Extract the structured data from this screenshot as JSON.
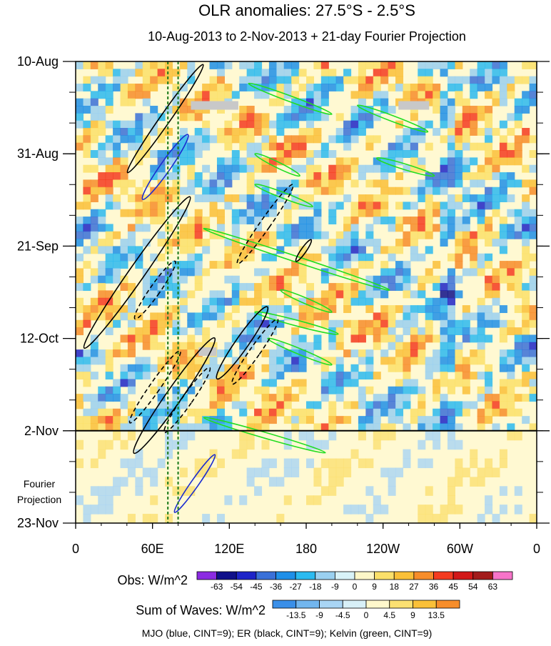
{
  "chart_data": {
    "type": "heatmap",
    "title": "OLR anomalies: 27.5°S - 2.5°S",
    "subtitle": "10-Aug-2013 to 2-Nov-2013 + 21-day Fourier Projection",
    "x_ticks": [
      "0",
      "60E",
      "120E",
      "180",
      "120W",
      "60W",
      "0"
    ],
    "x_tick_lon": [
      0,
      60,
      120,
      180,
      240,
      300,
      360
    ],
    "xlim": [
      0,
      360
    ],
    "y_ticks": [
      "10-Aug",
      "31-Aug",
      "21-Sep",
      "12-Oct",
      "2-Nov",
      "23-Nov"
    ],
    "y_tick_day": [
      0,
      21,
      42,
      63,
      84,
      105
    ],
    "ylim_days": [
      0,
      105
    ],
    "observation_end_day": 84,
    "projection_label": "Fourier\nProjection",
    "dashed_longitudes": [
      72,
      80
    ],
    "missing_bars": [
      {
        "lon": [
          90,
          127
        ],
        "day": 10
      },
      {
        "lon": [
          252,
          276
        ],
        "day": 10
      },
      {
        "lon": [
          96,
          110
        ],
        "day": 66
      }
    ],
    "kelvin_waves": [
      {
        "lon": [
          135,
          200
        ],
        "day": [
          5,
          12
        ]
      },
      {
        "lon": [
          220,
          275
        ],
        "day": [
          10,
          16
        ]
      },
      {
        "lon": [
          140,
          175
        ],
        "day": [
          21,
          26
        ]
      },
      {
        "lon": [
          235,
          280
        ],
        "day": [
          22,
          26
        ]
      },
      {
        "lon": [
          140,
          185
        ],
        "day": [
          28,
          33
        ]
      },
      {
        "lon": [
          100,
          245
        ],
        "day": [
          38,
          52
        ]
      },
      {
        "lon": [
          160,
          200
        ],
        "day": [
          52,
          57
        ]
      },
      {
        "lon": [
          140,
          205
        ],
        "day": [
          57,
          62
        ]
      },
      {
        "lon": [
          150,
          200
        ],
        "day": [
          63,
          69
        ]
      },
      {
        "lon": [
          100,
          195
        ],
        "day": [
          81,
          89
        ]
      }
    ],
    "er_waves": [
      {
        "lon": 70,
        "day": 13,
        "rx": 4,
        "ry": 15,
        "dashed": false
      },
      {
        "lon": 48,
        "day": 48,
        "rx": 6,
        "ry": 21,
        "dashed": false
      },
      {
        "lon": 62,
        "day": 52,
        "rx": 4,
        "ry": 8,
        "dashed": true
      },
      {
        "lon": 130,
        "day": 64,
        "rx": 5,
        "ry": 10,
        "dashed": false
      },
      {
        "lon": 140,
        "day": 66,
        "rx": 4,
        "ry": 9,
        "dashed": true
      },
      {
        "lon": 148,
        "day": 37,
        "rx": 4,
        "ry": 11,
        "dashed": true
      },
      {
        "lon": 178,
        "day": 43,
        "rx": 2,
        "ry": 3,
        "dashed": false
      },
      {
        "lon": 62,
        "day": 74,
        "rx": 4,
        "ry": 10,
        "dashed": true
      },
      {
        "lon": 77,
        "day": 76,
        "rx": 6,
        "ry": 16,
        "dashed": false
      },
      {
        "lon": 87,
        "day": 77,
        "rx": 4,
        "ry": 9,
        "dashed": true
      }
    ],
    "mjo_waves": [
      {
        "lon": 70,
        "day": 24,
        "rx": 4,
        "ry": 9,
        "dashed": false
      },
      {
        "lon": 93,
        "day": 96,
        "rx": 3,
        "ry": 8,
        "dashed": false
      }
    ],
    "obs_colorbar": {
      "label": "Obs: W/m^2",
      "levels": [
        "-63",
        "-54",
        "-45",
        "-36",
        "-27",
        "-18",
        "-9",
        "0",
        "9",
        "18",
        "27",
        "36",
        "45",
        "54",
        "63"
      ],
      "colors": [
        "#8b2be2",
        "#10108a",
        "#1e24c8",
        "#3a70d8",
        "#1f8fe8",
        "#2bbaf0",
        "#9ad0f0",
        "#d8f2f8",
        "#fef7c8",
        "#fbe06a",
        "#fac038",
        "#f78d2a",
        "#f43b20",
        "#d21818",
        "#a31b1b",
        "#f774c9"
      ]
    },
    "waves_colorbar": {
      "label": "Sum of Waves: W/m^2",
      "levels": [
        "-13.5",
        "-9",
        "-4.5",
        "0",
        "4.5",
        "9",
        "13.5"
      ],
      "colors": [
        "#3a8fe8",
        "#72b6ee",
        "#a9d5f4",
        "#d8f0f8",
        "#fff8cc",
        "#fbe072",
        "#fac038",
        "#f78d2a"
      ]
    },
    "footer": "MJO (blue, CINT=9); ER (black, CINT=9); Kelvin (green, CINT=9)"
  }
}
